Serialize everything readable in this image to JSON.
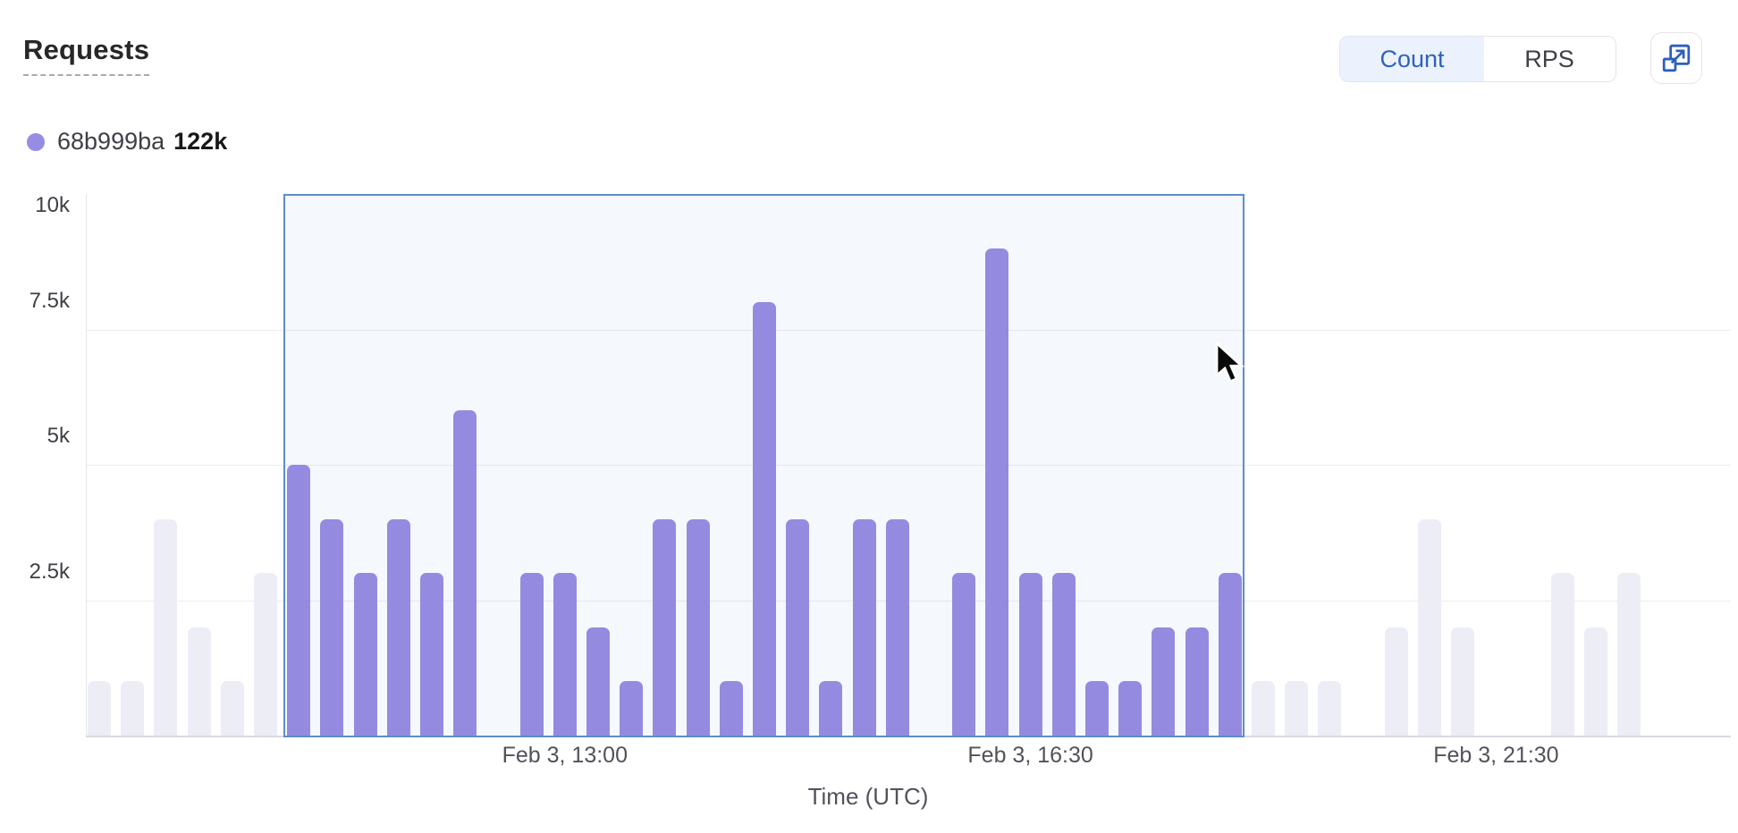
{
  "header": {
    "title": "Requests"
  },
  "toggle": {
    "options": [
      {
        "label": "Count"
      },
      {
        "label": "RPS"
      }
    ]
  },
  "legend": {
    "series_id": "68b999ba",
    "total": "122k",
    "dot_color": "#978ce4"
  },
  "chart_data": {
    "type": "bar",
    "title": "Requests",
    "series_name": "68b999ba",
    "series_total_label": "122k",
    "xlabel": "Time (UTC)",
    "ylabel": "",
    "ylim": [
      0,
      10000
    ],
    "y_ticks": [
      {
        "label": "10k",
        "value": 10000
      },
      {
        "label": "7.5k",
        "value": 7500
      },
      {
        "label": "5k",
        "value": 5000
      },
      {
        "label": "2.5k",
        "value": 2500
      }
    ],
    "x_ticks": [
      {
        "label": "Feb 3, 13:00",
        "slot": 14
      },
      {
        "label": "Feb 3, 16:30",
        "slot": 28
      },
      {
        "label": "Feb 3, 21:30",
        "slot": 42
      }
    ],
    "values": [
      1000,
      1000,
      4000,
      2000,
      1000,
      3000,
      5000,
      4000,
      3000,
      4000,
      3000,
      6000,
      0,
      3000,
      3000,
      2000,
      1000,
      4000,
      4000,
      1000,
      8000,
      4000,
      1000,
      4000,
      4000,
      0,
      3000,
      9000,
      3000,
      3000,
      1000,
      1000,
      2000,
      2000,
      3000,
      1000,
      1000,
      1000,
      0,
      2000,
      4000,
      2000,
      0,
      0,
      3000,
      2000,
      3000,
      0,
      0
    ],
    "selection": {
      "start_slot": 6,
      "end_slot": 34
    },
    "grid": true,
    "legend_position": "top-left",
    "colors": {
      "bar": "#948be0",
      "bar_faded": "#ededf6",
      "selection_border": "#5f8cc8",
      "selection_fill": "rgba(110,155,215,0.07)",
      "accent_blue": "#2f62bd"
    }
  }
}
